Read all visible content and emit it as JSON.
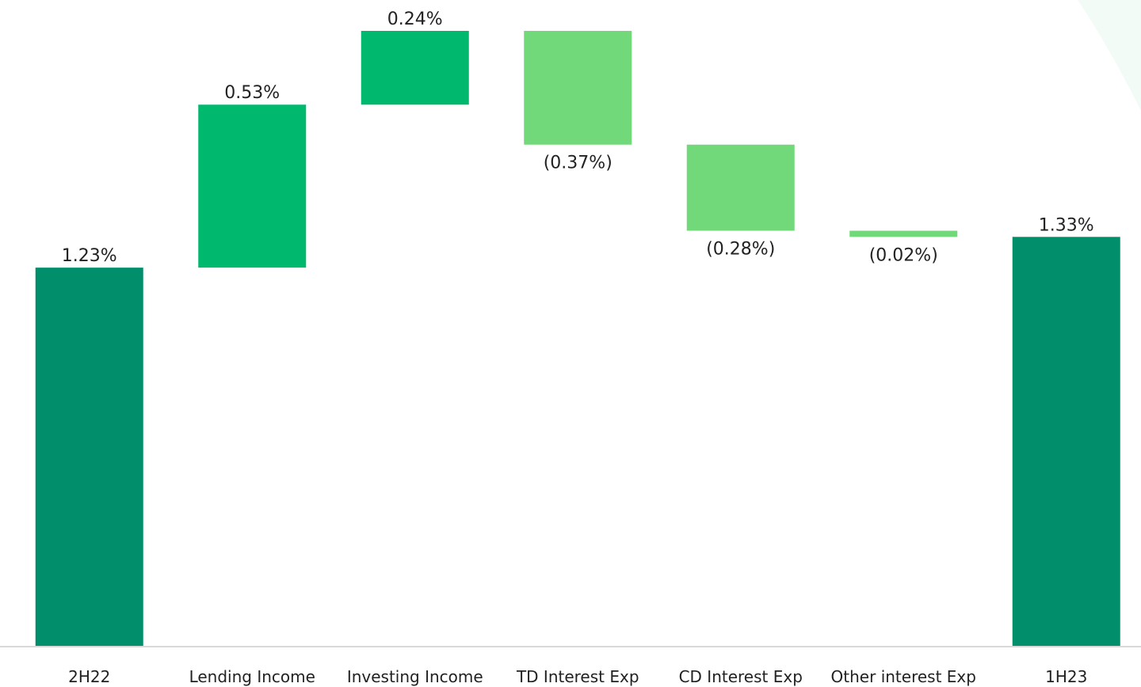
{
  "chart_data": {
    "type": "waterfall",
    "categories": [
      "2H22",
      "Lending Income",
      "Investing Income",
      "TD Interest Exp",
      "CD Interest Exp",
      "Other interest Exp",
      "1H23"
    ],
    "values": [
      1.23,
      0.53,
      0.24,
      -0.37,
      -0.28,
      -0.02,
      1.33
    ],
    "value_labels": [
      "1.23%",
      "0.53%",
      "0.24%",
      "(0.37%)",
      "(0.28%)",
      "(0.02%)",
      "1.33%"
    ],
    "colors": [
      "#008f6a",
      "#00b86e",
      "#00b86e",
      "#72d97a",
      "#72d97a",
      "#72d97a",
      "#008f6a"
    ],
    "ylim": [
      0,
      2.0
    ]
  }
}
